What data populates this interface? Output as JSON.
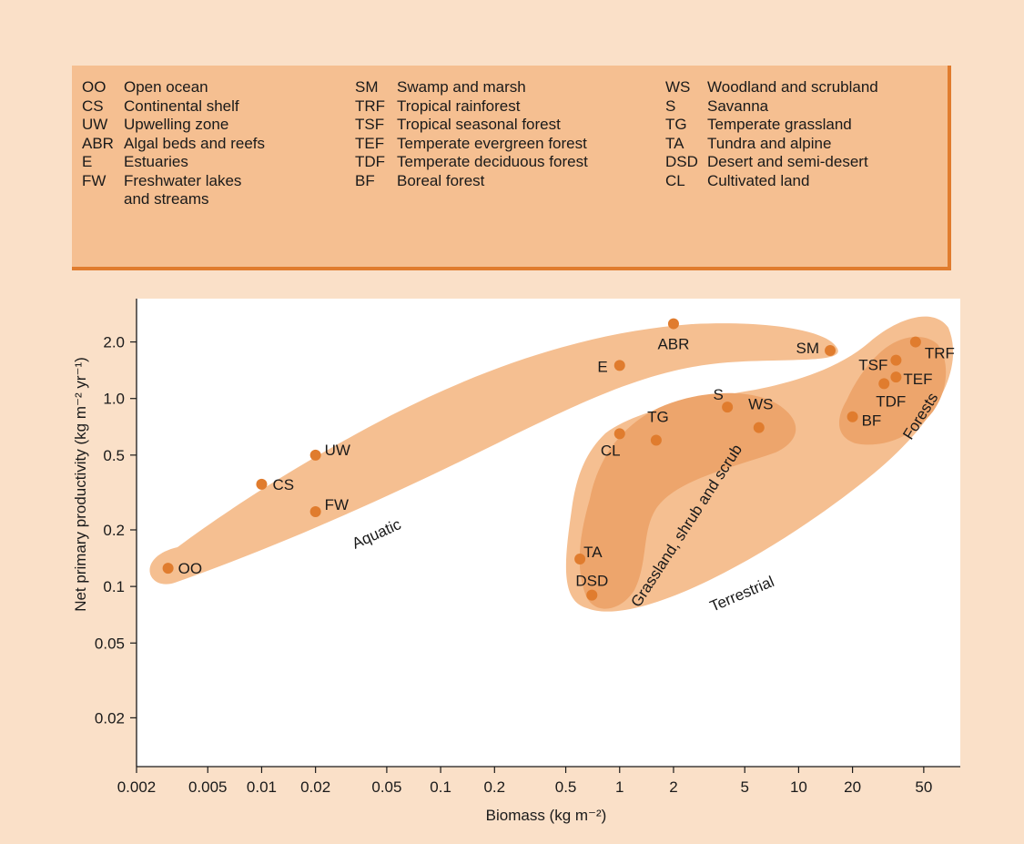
{
  "legend": {
    "columns": [
      [
        {
          "abbr": "OO",
          "name": "Open ocean"
        },
        {
          "abbr": "CS",
          "name": "Continental shelf"
        },
        {
          "abbr": "UW",
          "name": "Upwelling zone"
        },
        {
          "abbr": "ABR",
          "name": "Algal beds and reefs"
        },
        {
          "abbr": "E",
          "name": "Estuaries"
        },
        {
          "abbr": "FW",
          "name": "Freshwater lakes\nand streams"
        }
      ],
      [
        {
          "abbr": "SM",
          "name": "Swamp and marsh"
        },
        {
          "abbr": "TRF",
          "name": "Tropical rainforest"
        },
        {
          "abbr": "TSF",
          "name": "Tropical seasonal forest"
        },
        {
          "abbr": "TEF",
          "name": "Temperate evergreen forest"
        },
        {
          "abbr": "TDF",
          "name": "Temperate deciduous forest"
        },
        {
          "abbr": "BF",
          "name": "Boreal forest"
        }
      ],
      [
        {
          "abbr": "WS",
          "name": "Woodland and scrubland"
        },
        {
          "abbr": "S",
          "name": "Savanna"
        },
        {
          "abbr": "TG",
          "name": "Temperate grassland"
        },
        {
          "abbr": "TA",
          "name": "Tundra and alpine"
        },
        {
          "abbr": "DSD",
          "name": "Desert and semi-desert"
        },
        {
          "abbr": "CL",
          "name": "Cultivated land"
        }
      ]
    ]
  },
  "chart_data": {
    "type": "scatter",
    "xlabel": "Biomass (kg m⁻²)",
    "ylabel": "Net primary productivity (kg m⁻² yr⁻¹)",
    "x_scale": "log",
    "y_scale": "log",
    "xlim": [
      0.002,
      80
    ],
    "ylim": [
      0.011,
      3.4
    ],
    "x_ticks": [
      0.002,
      0.005,
      0.01,
      0.02,
      0.05,
      0.1,
      0.2,
      0.5,
      1,
      2,
      5,
      10,
      20,
      50
    ],
    "x_tick_labels": [
      "0.002",
      "0.005",
      "0.01",
      "0.02",
      "0.05",
      "0.1",
      "0.2",
      "0.5",
      "1",
      "2",
      "5",
      "10",
      "20",
      "50"
    ],
    "y_ticks": [
      0.02,
      0.05,
      0.1,
      0.2,
      0.5,
      1.0,
      2.0
    ],
    "y_tick_labels": [
      "0.02",
      "0.05",
      "0.1",
      "0.2",
      "0.5",
      "1.0",
      "2.0"
    ],
    "grid": false,
    "marker_color": "#e07c2e",
    "region_color": "#f5bf91",
    "subregion_color": "#eda56c",
    "points": [
      {
        "label": "OO",
        "x": 0.003,
        "y": 0.125
      },
      {
        "label": "CS",
        "x": 0.01,
        "y": 0.35
      },
      {
        "label": "UW",
        "x": 0.02,
        "y": 0.5
      },
      {
        "label": "FW",
        "x": 0.02,
        "y": 0.25
      },
      {
        "label": "E",
        "x": 1.0,
        "y": 1.5
      },
      {
        "label": "ABR",
        "x": 2.0,
        "y": 2.5
      },
      {
        "label": "SM",
        "x": 15,
        "y": 1.8
      },
      {
        "label": "TSF",
        "x": 35,
        "y": 1.6
      },
      {
        "label": "TRF",
        "x": 45,
        "y": 2.0
      },
      {
        "label": "TEF",
        "x": 35,
        "y": 1.3
      },
      {
        "label": "TDF",
        "x": 30,
        "y": 1.2
      },
      {
        "label": "BF",
        "x": 20,
        "y": 0.8
      },
      {
        "label": "S",
        "x": 4.0,
        "y": 0.9
      },
      {
        "label": "WS",
        "x": 6.0,
        "y": 0.7
      },
      {
        "label": "TG",
        "x": 1.6,
        "y": 0.6
      },
      {
        "label": "CL",
        "x": 1.0,
        "y": 0.65
      },
      {
        "label": "TA",
        "x": 0.6,
        "y": 0.14
      },
      {
        "label": "DSD",
        "x": 0.7,
        "y": 0.09
      }
    ],
    "annotations": [
      "Aquatic",
      "Terrestrial",
      "Grassland, shrub and scrub",
      "Forests"
    ]
  }
}
